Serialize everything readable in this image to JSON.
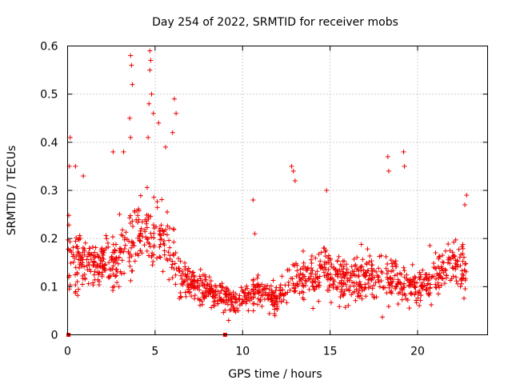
{
  "chart_data": {
    "type": "scatter",
    "title": "Day 254 of 2022, SRMTID for receiver mobs",
    "xlabel": "GPS time / hours",
    "ylabel": "SRMTID / TECUs",
    "xlim": [
      0,
      24
    ],
    "ylim": [
      0,
      0.6
    ],
    "xticks": [
      0,
      5,
      10,
      15,
      20
    ],
    "yticks": [
      0,
      0.1,
      0.2,
      0.3,
      0.4,
      0.5,
      0.6
    ],
    "xtick_labels": [
      "0",
      "5",
      "10",
      "15",
      "20"
    ],
    "ytick_labels": [
      "0",
      "0.1",
      "0.2",
      "0.3",
      "0.4",
      "0.5",
      "0.6"
    ],
    "grid": true,
    "marker": "+",
    "series_color": "#ee0000",
    "zero_markers": [
      {
        "x": 0.05,
        "y": 0
      },
      {
        "x": 9.0,
        "y": 0
      }
    ],
    "notable_points": [
      {
        "x": 0.15,
        "y": 0.41
      },
      {
        "x": 0.1,
        "y": 0.35
      },
      {
        "x": 0.45,
        "y": 0.35
      },
      {
        "x": 0.9,
        "y": 0.33
      },
      {
        "x": 2.6,
        "y": 0.38
      },
      {
        "x": 3.2,
        "y": 0.38
      },
      {
        "x": 3.6,
        "y": 0.58
      },
      {
        "x": 3.65,
        "y": 0.56
      },
      {
        "x": 3.7,
        "y": 0.52
      },
      {
        "x": 3.55,
        "y": 0.45
      },
      {
        "x": 3.6,
        "y": 0.41
      },
      {
        "x": 4.7,
        "y": 0.59
      },
      {
        "x": 4.75,
        "y": 0.57
      },
      {
        "x": 4.7,
        "y": 0.55
      },
      {
        "x": 4.8,
        "y": 0.5
      },
      {
        "x": 4.65,
        "y": 0.48
      },
      {
        "x": 4.6,
        "y": 0.41
      },
      {
        "x": 4.9,
        "y": 0.46
      },
      {
        "x": 5.2,
        "y": 0.44
      },
      {
        "x": 6.1,
        "y": 0.49
      },
      {
        "x": 6.2,
        "y": 0.46
      },
      {
        "x": 6.0,
        "y": 0.42
      },
      {
        "x": 5.6,
        "y": 0.39
      },
      {
        "x": 9.2,
        "y": 0.03
      },
      {
        "x": 10.6,
        "y": 0.28
      },
      {
        "x": 10.7,
        "y": 0.21
      },
      {
        "x": 12.8,
        "y": 0.35
      },
      {
        "x": 12.9,
        "y": 0.34
      },
      {
        "x": 13.0,
        "y": 0.32
      },
      {
        "x": 14.8,
        "y": 0.3
      },
      {
        "x": 18.3,
        "y": 0.37
      },
      {
        "x": 18.35,
        "y": 0.34
      },
      {
        "x": 19.2,
        "y": 0.38
      },
      {
        "x": 19.25,
        "y": 0.35
      },
      {
        "x": 22.8,
        "y": 0.29
      },
      {
        "x": 22.7,
        "y": 0.27
      }
    ],
    "envelope": [
      {
        "t": 0.0,
        "mean": 0.16,
        "spread": 0.09
      },
      {
        "t": 1.0,
        "mean": 0.16,
        "spread": 0.08
      },
      {
        "t": 2.0,
        "mean": 0.15,
        "spread": 0.07
      },
      {
        "t": 3.0,
        "mean": 0.16,
        "spread": 0.09
      },
      {
        "t": 4.0,
        "mean": 0.2,
        "spread": 0.1
      },
      {
        "t": 5.0,
        "mean": 0.22,
        "spread": 0.11
      },
      {
        "t": 6.0,
        "mean": 0.17,
        "spread": 0.09
      },
      {
        "t": 6.5,
        "mean": 0.12,
        "spread": 0.05
      },
      {
        "t": 8.0,
        "mean": 0.09,
        "spread": 0.04
      },
      {
        "t": 9.5,
        "mean": 0.07,
        "spread": 0.035
      },
      {
        "t": 11.0,
        "mean": 0.09,
        "spread": 0.045
      },
      {
        "t": 12.0,
        "mean": 0.07,
        "spread": 0.035
      },
      {
        "t": 13.0,
        "mean": 0.12,
        "spread": 0.06
      },
      {
        "t": 14.5,
        "mean": 0.13,
        "spread": 0.07
      },
      {
        "t": 16.0,
        "mean": 0.11,
        "spread": 0.06
      },
      {
        "t": 18.0,
        "mean": 0.12,
        "spread": 0.07
      },
      {
        "t": 20.0,
        "mean": 0.1,
        "spread": 0.05
      },
      {
        "t": 22.0,
        "mean": 0.15,
        "spread": 0.07
      },
      {
        "t": 22.8,
        "mean": 0.14,
        "spread": 0.07
      }
    ],
    "sample_count": 1300
  }
}
